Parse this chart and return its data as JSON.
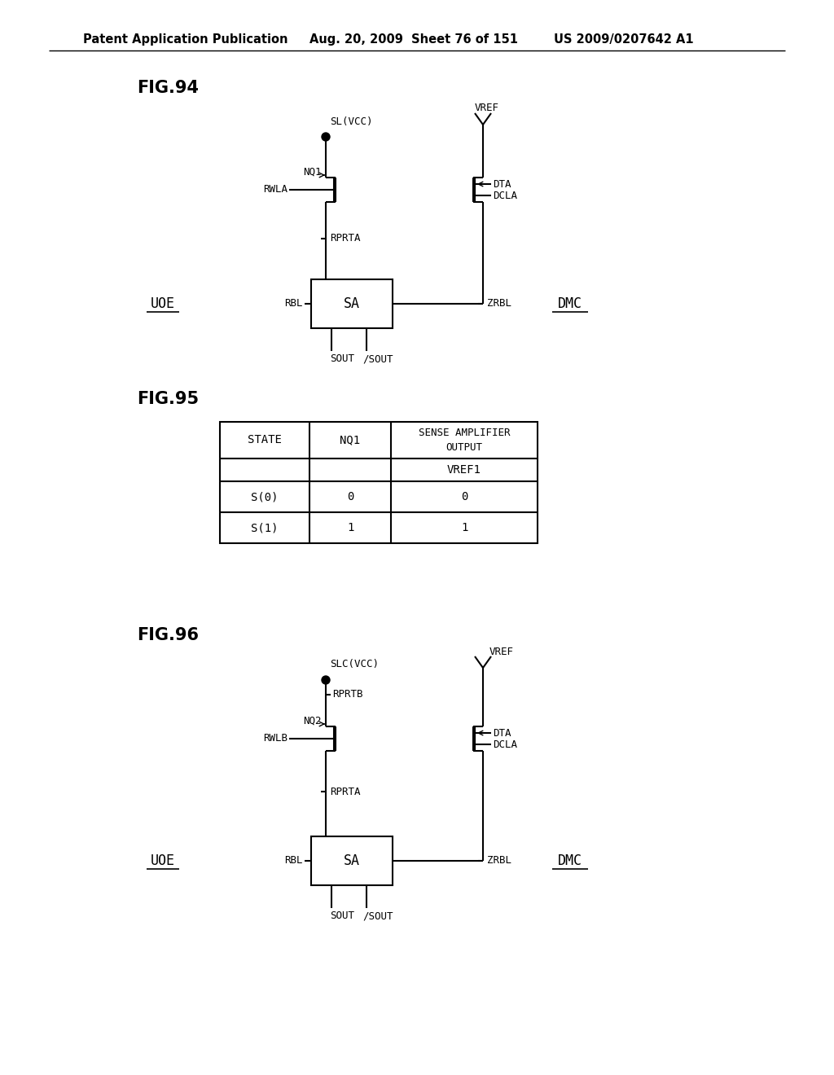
{
  "bg_color": "#ffffff",
  "header_left": "Patent Application Publication",
  "header_mid": "Aug. 20, 2009  Sheet 76 of 151",
  "header_right": "US 2009/0207642 A1",
  "fig94_label": "FIG.94",
  "fig95_label": "FIG.95",
  "fig96_label": "FIG.96",
  "font_size_header": 10.5,
  "font_size_fig_label": 15,
  "font_size_diagram": 9,
  "font_size_table": 10
}
